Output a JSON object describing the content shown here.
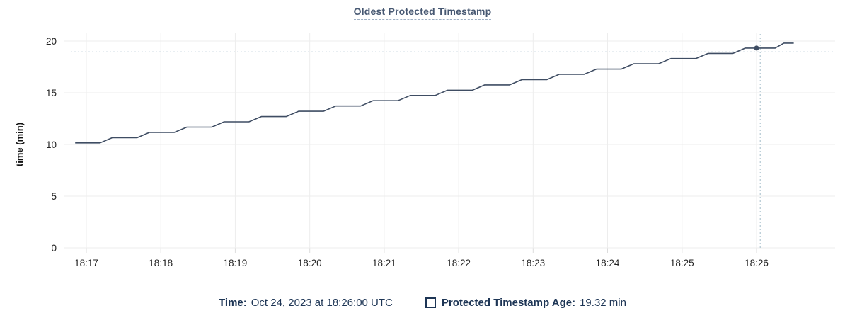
{
  "chart_data": {
    "type": "line",
    "title": "Oldest Protected Timestamp",
    "ylabel": "time (min)",
    "ylim": [
      0,
      20
    ],
    "y_ticks": [
      0,
      5,
      10,
      15,
      20
    ],
    "x_ticks": [
      "18:17",
      "18:18",
      "18:19",
      "18:20",
      "18:21",
      "18:22",
      "18:23",
      "18:24",
      "18:25",
      "18:26"
    ],
    "grid": true,
    "legend_position": "bottom",
    "colors": {
      "line": "#3f4d63",
      "crosshair": "#a2bcc9",
      "gridline": "#ededed",
      "title": "#475872",
      "legend_text": "#1d3555"
    },
    "series": [
      {
        "name": "Protected Timestamp Age",
        "color": "#3f4d63",
        "unit": "min",
        "points": [
          [
            "18:16:51",
            10.15
          ],
          [
            "18:17:11",
            10.15
          ],
          [
            "18:17:21",
            10.66
          ],
          [
            "18:17:41",
            10.66
          ],
          [
            "18:17:51",
            11.17
          ],
          [
            "18:18:11",
            11.17
          ],
          [
            "18:18:21",
            11.68
          ],
          [
            "18:18:41",
            11.68
          ],
          [
            "18:18:51",
            12.19
          ],
          [
            "18:19:11",
            12.19
          ],
          [
            "18:19:21",
            12.7
          ],
          [
            "18:19:41",
            12.7
          ],
          [
            "18:19:51",
            13.21
          ],
          [
            "18:20:11",
            13.21
          ],
          [
            "18:20:21",
            13.72
          ],
          [
            "18:20:41",
            13.72
          ],
          [
            "18:20:51",
            14.23
          ],
          [
            "18:21:11",
            14.23
          ],
          [
            "18:21:21",
            14.74
          ],
          [
            "18:21:41",
            14.74
          ],
          [
            "18:21:51",
            15.25
          ],
          [
            "18:22:11",
            15.25
          ],
          [
            "18:22:21",
            15.76
          ],
          [
            "18:22:41",
            15.76
          ],
          [
            "18:22:51",
            16.27
          ],
          [
            "18:23:11",
            16.27
          ],
          [
            "18:23:21",
            16.78
          ],
          [
            "18:23:41",
            16.78
          ],
          [
            "18:23:51",
            17.29
          ],
          [
            "18:24:11",
            17.29
          ],
          [
            "18:24:21",
            17.8
          ],
          [
            "18:24:41",
            17.8
          ],
          [
            "18:24:51",
            18.31
          ],
          [
            "18:25:11",
            18.31
          ],
          [
            "18:25:21",
            18.81
          ],
          [
            "18:25:41",
            18.81
          ],
          [
            "18:25:51",
            19.32
          ],
          [
            "18:26:00",
            19.32
          ],
          [
            "18:26:15",
            19.32
          ],
          [
            "18:26:22",
            19.8
          ],
          [
            "18:26:30",
            19.8
          ]
        ]
      }
    ],
    "hover": {
      "time": "18:26:00",
      "value": 19.32,
      "crosshair_time": "18:26:03",
      "crosshair_value": 18.95
    }
  },
  "legend": {
    "time_label": "Time:",
    "time_value": "Oct 24, 2023 at 18:26:00 UTC",
    "series_label": "Protected Timestamp Age:",
    "series_value": "19.32 min"
  }
}
